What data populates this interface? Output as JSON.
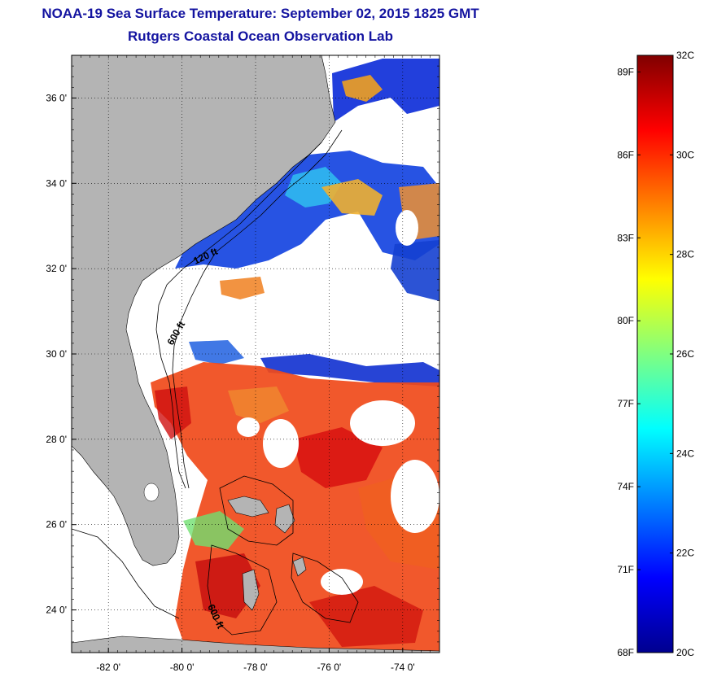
{
  "title": {
    "line1": "NOAA-19 Sea Surface Temperature:  September 02, 2015 1825 GMT",
    "line2": "Rutgers Coastal Ocean Observation Lab"
  },
  "map": {
    "lat_range": [
      23,
      37
    ],
    "lon_range": [
      -83,
      -73
    ],
    "lat_ticks": [
      {
        "value": 36,
        "label": "36 0'"
      },
      {
        "value": 34,
        "label": "34 0'"
      },
      {
        "value": 32,
        "label": "32 0'"
      },
      {
        "value": 30,
        "label": "30 0'"
      },
      {
        "value": 28,
        "label": "28 0'"
      },
      {
        "value": 26,
        "label": "26 0'"
      },
      {
        "value": 24,
        "label": "24 0'"
      }
    ],
    "lon_ticks": [
      {
        "value": -82,
        "label": "-82 0'"
      },
      {
        "value": -80,
        "label": "-80 0'"
      },
      {
        "value": -78,
        "label": "-78 0'"
      },
      {
        "value": -76,
        "label": "-76 0'"
      },
      {
        "value": -74,
        "label": "-74 0'"
      }
    ],
    "contour_labels": [
      "120 ft",
      "600 ft",
      "600 ft"
    ],
    "colors": {
      "land": "#b4b4b4",
      "cloud": "#ffffff",
      "grid": "#000000"
    }
  },
  "colorbar": {
    "range_c": [
      20,
      32
    ],
    "celsius_labels": [
      {
        "value": 32,
        "label": "32C"
      },
      {
        "value": 30,
        "label": "30C"
      },
      {
        "value": 28,
        "label": "28C"
      },
      {
        "value": 26,
        "label": "26C"
      },
      {
        "value": 24,
        "label": "24C"
      },
      {
        "value": 22,
        "label": "22C"
      },
      {
        "value": 20,
        "label": "20C"
      }
    ],
    "fahrenheit_labels": [
      {
        "value": 89,
        "label": "89F"
      },
      {
        "value": 86,
        "label": "86F"
      },
      {
        "value": 83,
        "label": "83F"
      },
      {
        "value": 80,
        "label": "80F"
      },
      {
        "value": 77,
        "label": "77F"
      },
      {
        "value": 74,
        "label": "74F"
      },
      {
        "value": 71,
        "label": "71F"
      },
      {
        "value": 68,
        "label": "68F"
      }
    ],
    "colormap": [
      "#00008f",
      "#0000ff",
      "#0080ff",
      "#00ffff",
      "#80ff80",
      "#ffff00",
      "#ff8000",
      "#ff0000",
      "#800000"
    ]
  }
}
